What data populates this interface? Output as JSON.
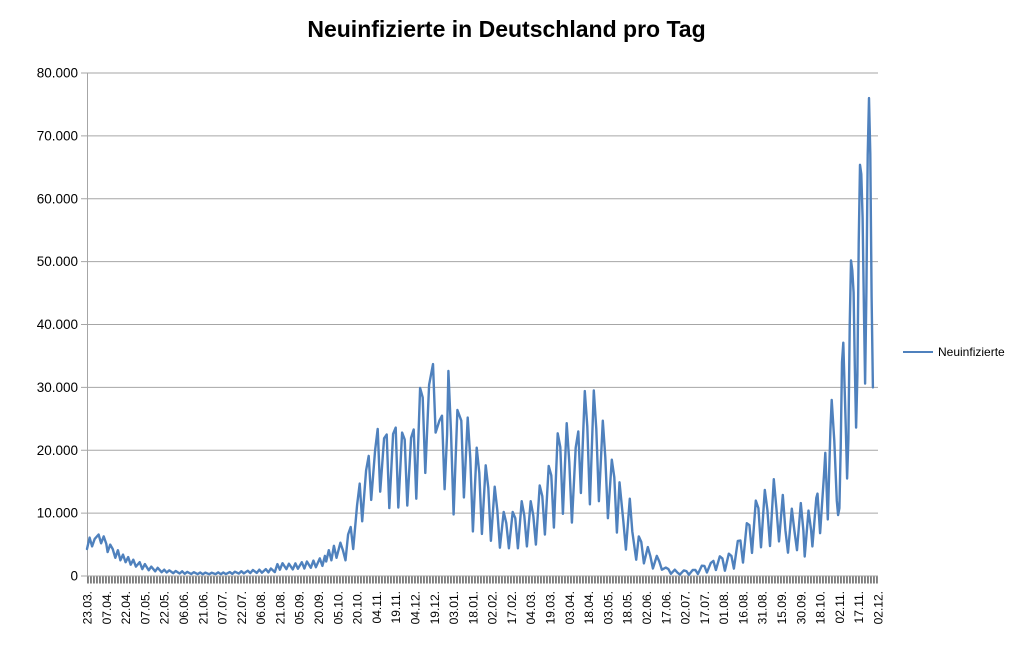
{
  "title": "Neuinfizierte in Deutschland pro Tag",
  "legend": {
    "label": "Neuinfizierte",
    "line_color": "#4F81BD"
  },
  "colors": {
    "series_line": "#4F81BD",
    "gridline": "#A6A6A6",
    "axis_line": "#A6A6A6",
    "tick_comb": "#7F7F7F",
    "label_text": "#000000",
    "background": "#FFFFFF"
  },
  "y_axis": {
    "ticks": [
      "0",
      "10.000",
      "20.000",
      "30.000",
      "40.000",
      "50.000",
      "60.000",
      "70.000",
      "80.000"
    ],
    "min": 0,
    "max": 80000,
    "step": 10000
  },
  "x_axis": {
    "label_interval": 15,
    "labels": [
      "23.03.",
      "07.04.",
      "22.04.",
      "07.05.",
      "22.05.",
      "06.06.",
      "21.06.",
      "07.07.",
      "22.07.",
      "06.08.",
      "21.08.",
      "05.09.",
      "20.09.",
      "05.10.",
      "20.10.",
      "04.11.",
      "19.11.",
      "04.12.",
      "19.12.",
      "03.01.",
      "18.01.",
      "02.02.",
      "17.02.",
      "04.03.",
      "19.03.",
      "03.04.",
      "18.04.",
      "03.05.",
      "18.05.",
      "02.06.",
      "17.06.",
      "02.07.",
      "17.07.",
      "01.08.",
      "16.08.",
      "31.08.",
      "15.09.",
      "30.09.",
      "18.10.",
      "02.11.",
      "17.11.",
      "02.12."
    ]
  },
  "chart_data": {
    "type": "line",
    "title": "Neuinfizierte in Deutschland pro Tag",
    "xlabel": "",
    "ylabel": "",
    "ylim": [
      0,
      80000
    ],
    "x_index_max": 615,
    "grid": "horizontal",
    "legend_position": "right",
    "note": "x = day index from 23.03.2020 (0) to 02.12.2021 (615); y = new infections per day; points are peak/trough samples of the daily zigzag read from the plot",
    "series": [
      {
        "name": "Neuinfizierte",
        "color": "#4F81BD",
        "points": [
          [
            0,
            4300
          ],
          [
            2,
            6100
          ],
          [
            4,
            4700
          ],
          [
            6,
            5900
          ],
          [
            9,
            6600
          ],
          [
            11,
            5200
          ],
          [
            13,
            6300
          ],
          [
            15,
            5100
          ],
          [
            16,
            3800
          ],
          [
            18,
            5000
          ],
          [
            20,
            4300
          ],
          [
            22,
            2900
          ],
          [
            24,
            4100
          ],
          [
            26,
            2500
          ],
          [
            28,
            3400
          ],
          [
            30,
            2200
          ],
          [
            32,
            3000
          ],
          [
            34,
            1800
          ],
          [
            36,
            2600
          ],
          [
            38,
            1500
          ],
          [
            41,
            2200
          ],
          [
            43,
            1100
          ],
          [
            45,
            1900
          ],
          [
            48,
            900
          ],
          [
            50,
            1500
          ],
          [
            53,
            750
          ],
          [
            55,
            1300
          ],
          [
            58,
            600
          ],
          [
            60,
            1000
          ],
          [
            62,
            550
          ],
          [
            64,
            900
          ],
          [
            67,
            450
          ],
          [
            69,
            800
          ],
          [
            72,
            400
          ],
          [
            74,
            750
          ],
          [
            76,
            350
          ],
          [
            78,
            650
          ],
          [
            81,
            320
          ],
          [
            83,
            600
          ],
          [
            86,
            300
          ],
          [
            88,
            560
          ],
          [
            90,
            290
          ],
          [
            92,
            540
          ],
          [
            95,
            280
          ],
          [
            97,
            530
          ],
          [
            100,
            300
          ],
          [
            102,
            580
          ],
          [
            104,
            290
          ],
          [
            106,
            560
          ],
          [
            108,
            310
          ],
          [
            111,
            620
          ],
          [
            113,
            340
          ],
          [
            115,
            680
          ],
          [
            118,
            380
          ],
          [
            120,
            760
          ],
          [
            122,
            420
          ],
          [
            125,
            850
          ],
          [
            127,
            460
          ],
          [
            129,
            950
          ],
          [
            132,
            500
          ],
          [
            134,
            1000
          ],
          [
            136,
            520
          ],
          [
            139,
            1100
          ],
          [
            141,
            580
          ],
          [
            143,
            1200
          ],
          [
            146,
            620
          ],
          [
            148,
            1900
          ],
          [
            150,
            1000
          ],
          [
            152,
            2030
          ],
          [
            155,
            1100
          ],
          [
            157,
            1950
          ],
          [
            160,
            1050
          ],
          [
            162,
            2000
          ],
          [
            164,
            1150
          ],
          [
            167,
            2200
          ],
          [
            169,
            1200
          ],
          [
            171,
            2300
          ],
          [
            174,
            1300
          ],
          [
            176,
            2450
          ],
          [
            178,
            1400
          ],
          [
            181,
            2800
          ],
          [
            183,
            1600
          ],
          [
            185,
            3200
          ],
          [
            186,
            2300
          ],
          [
            188,
            4100
          ],
          [
            190,
            2500
          ],
          [
            192,
            4800
          ],
          [
            194,
            2900
          ],
          [
            197,
            5300
          ],
          [
            199,
            4100
          ],
          [
            201,
            2500
          ],
          [
            203,
            6600
          ],
          [
            205,
            7800
          ],
          [
            207,
            4300
          ],
          [
            210,
            11300
          ],
          [
            212,
            14700
          ],
          [
            214,
            8700
          ],
          [
            217,
            16800
          ],
          [
            219,
            19100
          ],
          [
            221,
            12100
          ],
          [
            224,
            20000
          ],
          [
            226,
            23400
          ],
          [
            228,
            13400
          ],
          [
            231,
            21900
          ],
          [
            233,
            22500
          ],
          [
            235,
            10800
          ],
          [
            238,
            22600
          ],
          [
            240,
            23600
          ],
          [
            242,
            10900
          ],
          [
            245,
            22800
          ],
          [
            247,
            21700
          ],
          [
            249,
            11200
          ],
          [
            252,
            22000
          ],
          [
            254,
            23300
          ],
          [
            256,
            12300
          ],
          [
            259,
            29900
          ],
          [
            261,
            28400
          ],
          [
            263,
            16400
          ],
          [
            266,
            30400
          ],
          [
            269,
            33700
          ],
          [
            271,
            22800
          ],
          [
            274,
            24700
          ],
          [
            276,
            25500
          ],
          [
            278,
            13800
          ],
          [
            280,
            22500
          ],
          [
            281,
            32600
          ],
          [
            283,
            22900
          ],
          [
            285,
            9800
          ],
          [
            288,
            26400
          ],
          [
            291,
            24700
          ],
          [
            293,
            12500
          ],
          [
            296,
            25200
          ],
          [
            298,
            18700
          ],
          [
            300,
            7100
          ],
          [
            303,
            20400
          ],
          [
            305,
            16400
          ],
          [
            307,
            6700
          ],
          [
            310,
            17600
          ],
          [
            312,
            14000
          ],
          [
            314,
            5600
          ],
          [
            317,
            14200
          ],
          [
            319,
            10500
          ],
          [
            321,
            4500
          ],
          [
            324,
            10200
          ],
          [
            326,
            8400
          ],
          [
            328,
            4400
          ],
          [
            331,
            10200
          ],
          [
            333,
            9200
          ],
          [
            335,
            4400
          ],
          [
            338,
            11900
          ],
          [
            340,
            9600
          ],
          [
            342,
            4700
          ],
          [
            345,
            11900
          ],
          [
            347,
            9600
          ],
          [
            349,
            5000
          ],
          [
            352,
            14400
          ],
          [
            354,
            12700
          ],
          [
            356,
            6600
          ],
          [
            359,
            17500
          ],
          [
            361,
            16000
          ],
          [
            363,
            7700
          ],
          [
            366,
            22700
          ],
          [
            368,
            20500
          ],
          [
            370,
            9900
          ],
          [
            373,
            24300
          ],
          [
            375,
            18100
          ],
          [
            377,
            8500
          ],
          [
            380,
            20400
          ],
          [
            382,
            23000
          ],
          [
            384,
            13200
          ],
          [
            387,
            29400
          ],
          [
            389,
            23800
          ],
          [
            391,
            11400
          ],
          [
            394,
            29500
          ],
          [
            396,
            23400
          ],
          [
            398,
            11900
          ],
          [
            401,
            24700
          ],
          [
            403,
            18900
          ],
          [
            405,
            9200
          ],
          [
            408,
            18500
          ],
          [
            410,
            15700
          ],
          [
            412,
            6900
          ],
          [
            414,
            14900
          ],
          [
            417,
            8800
          ],
          [
            419,
            4200
          ],
          [
            422,
            12300
          ],
          [
            424,
            7100
          ],
          [
            427,
            2600
          ],
          [
            429,
            6300
          ],
          [
            431,
            5400
          ],
          [
            433,
            2000
          ],
          [
            436,
            4600
          ],
          [
            438,
            3200
          ],
          [
            440,
            1200
          ],
          [
            443,
            3200
          ],
          [
            445,
            2300
          ],
          [
            447,
            1000
          ],
          [
            450,
            1330
          ],
          [
            452,
            1100
          ],
          [
            454,
            350
          ],
          [
            457,
            1000
          ],
          [
            459,
            540
          ],
          [
            461,
            220
          ],
          [
            464,
            890
          ],
          [
            466,
            770
          ],
          [
            468,
            210
          ],
          [
            471,
            970
          ],
          [
            473,
            950
          ],
          [
            475,
            320
          ],
          [
            478,
            1640
          ],
          [
            480,
            1610
          ],
          [
            482,
            550
          ],
          [
            485,
            2090
          ],
          [
            487,
            2400
          ],
          [
            489,
            960
          ],
          [
            492,
            3140
          ],
          [
            494,
            2800
          ],
          [
            496,
            850
          ],
          [
            499,
            3540
          ],
          [
            501,
            3200
          ],
          [
            503,
            1180
          ],
          [
            506,
            5580
          ],
          [
            508,
            5640
          ],
          [
            510,
            2130
          ],
          [
            513,
            8400
          ],
          [
            515,
            8100
          ],
          [
            517,
            3670
          ],
          [
            520,
            12000
          ],
          [
            522,
            10800
          ],
          [
            524,
            4560
          ],
          [
            527,
            13700
          ],
          [
            529,
            10500
          ],
          [
            531,
            4750
          ],
          [
            534,
            15400
          ],
          [
            536,
            10800
          ],
          [
            538,
            5500
          ],
          [
            541,
            12900
          ],
          [
            543,
            7300
          ],
          [
            545,
            3700
          ],
          [
            548,
            10700
          ],
          [
            550,
            7200
          ],
          [
            552,
            4100
          ],
          [
            555,
            11600
          ],
          [
            557,
            7200
          ],
          [
            558,
            3100
          ],
          [
            561,
            10400
          ],
          [
            563,
            7300
          ],
          [
            564,
            4700
          ],
          [
            567,
            12400
          ],
          [
            568,
            13100
          ],
          [
            570,
            6800
          ],
          [
            573,
            16100
          ],
          [
            574,
            19600
          ],
          [
            576,
            9000
          ],
          [
            578,
            23200
          ],
          [
            579,
            28000
          ],
          [
            581,
            21500
          ],
          [
            583,
            12000
          ],
          [
            584,
            9700
          ],
          [
            585,
            10800
          ],
          [
            586,
            20400
          ],
          [
            587,
            34000
          ],
          [
            588,
            37100
          ],
          [
            590,
            23500
          ],
          [
            591,
            15500
          ],
          [
            592,
            21800
          ],
          [
            593,
            39700
          ],
          [
            594,
            50200
          ],
          [
            595,
            48600
          ],
          [
            596,
            45100
          ],
          [
            597,
            33500
          ],
          [
            598,
            23600
          ],
          [
            599,
            32000
          ],
          [
            600,
            52800
          ],
          [
            601,
            65400
          ],
          [
            602,
            63900
          ],
          [
            603,
            57000
          ],
          [
            604,
            42700
          ],
          [
            605,
            30600
          ],
          [
            606,
            45300
          ],
          [
            607,
            66900
          ],
          [
            608,
            76000
          ],
          [
            609,
            67100
          ],
          [
            610,
            44400
          ],
          [
            611,
            30000
          ]
        ]
      }
    ]
  }
}
